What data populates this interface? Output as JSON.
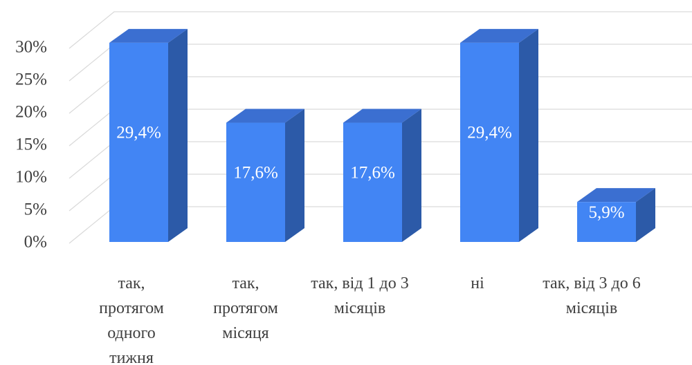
{
  "chart_data": {
    "type": "bar3d",
    "categories": [
      "так, протягом одного тижня",
      "так, протягом місяця",
      "так, від 1 до 3 місяців",
      "ні",
      "так, від 3 до 6 місяців"
    ],
    "values": [
      29.4,
      17.6,
      17.6,
      29.4,
      5.9
    ],
    "value_labels": [
      "29,4%",
      "17,6%",
      "17,6%",
      "29,4%",
      "5,9%"
    ],
    "color": "#4285f4",
    "ylim": [
      0,
      30
    ],
    "yticks": [
      {
        "value": 0,
        "label": "0%"
      },
      {
        "value": 5,
        "label": "5%"
      },
      {
        "value": 10,
        "label": "10%"
      },
      {
        "value": 15,
        "label": "15%"
      },
      {
        "value": 20,
        "label": "20%"
      },
      {
        "value": 25,
        "label": "25%"
      },
      {
        "value": 30,
        "label": "30%"
      }
    ],
    "grid": true
  }
}
